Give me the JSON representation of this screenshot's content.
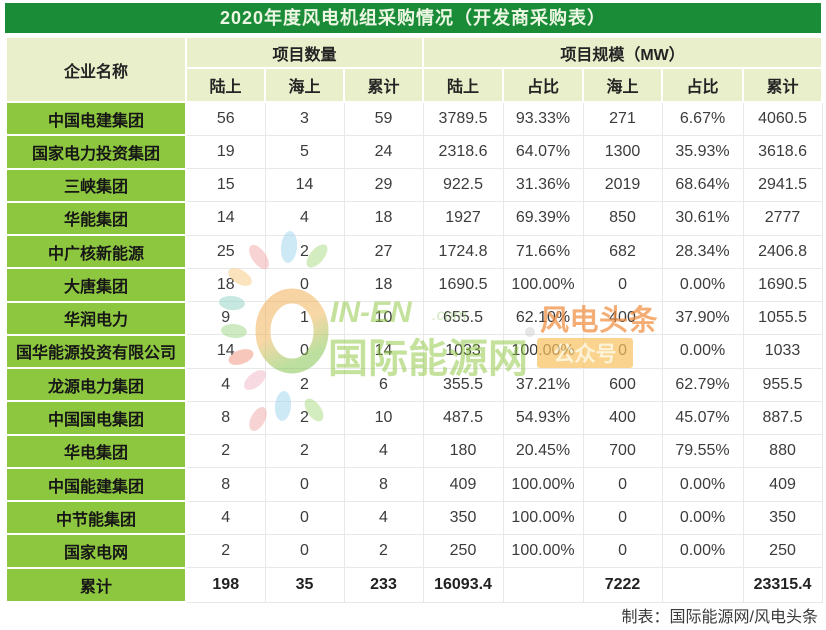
{
  "title": "2020年度风电机组采购情况（开发商采购表）",
  "chart_data": {
    "type": "table",
    "title": "2020年度风电机组采购情况（开发商采购表）",
    "corner_header": "企业名称",
    "group_headers": [
      {
        "label": "项目数量",
        "span": 3
      },
      {
        "label": "项目规模（MW）",
        "span": 5
      }
    ],
    "sub_headers": [
      "陆上",
      "海上",
      "累计",
      "陆上",
      "占比",
      "海上",
      "占比",
      "累计"
    ],
    "rows": [
      {
        "name": "中国电建集团",
        "cells": [
          "56",
          "3",
          "59",
          "3789.5",
          "93.33%",
          "271",
          "6.67%",
          "4060.5"
        ]
      },
      {
        "name": "国家电力投资集团",
        "cells": [
          "19",
          "5",
          "24",
          "2318.6",
          "64.07%",
          "1300",
          "35.93%",
          "3618.6"
        ]
      },
      {
        "name": "三峡集团",
        "cells": [
          "15",
          "14",
          "29",
          "922.5",
          "31.36%",
          "2019",
          "68.64%",
          "2941.5"
        ]
      },
      {
        "name": "华能集团",
        "cells": [
          "14",
          "4",
          "18",
          "1927",
          "69.39%",
          "850",
          "30.61%",
          "2777"
        ]
      },
      {
        "name": "中广核新能源",
        "cells": [
          "25",
          "2",
          "27",
          "1724.8",
          "71.66%",
          "682",
          "28.34%",
          "2406.8"
        ]
      },
      {
        "name": "大唐集团",
        "cells": [
          "18",
          "0",
          "18",
          "1690.5",
          "100.00%",
          "0",
          "0.00%",
          "1690.5"
        ]
      },
      {
        "name": "华润电力",
        "cells": [
          "9",
          "1",
          "10",
          "655.5",
          "62.10%",
          "400",
          "37.90%",
          "1055.5"
        ]
      },
      {
        "name": "国华能源投资有限公司",
        "cells": [
          "14",
          "0",
          "14",
          "1033",
          "100.00%",
          "0",
          "0.00%",
          "1033"
        ]
      },
      {
        "name": "龙源电力集团",
        "cells": [
          "4",
          "2",
          "6",
          "355.5",
          "37.21%",
          "600",
          "62.79%",
          "955.5"
        ]
      },
      {
        "name": "中国国电集团",
        "cells": [
          "8",
          "2",
          "10",
          "487.5",
          "54.93%",
          "400",
          "45.07%",
          "887.5"
        ]
      },
      {
        "name": "华电集团",
        "cells": [
          "2",
          "2",
          "4",
          "180",
          "20.45%",
          "700",
          "79.55%",
          "880"
        ]
      },
      {
        "name": "中国能建集团",
        "cells": [
          "8",
          "0",
          "8",
          "409",
          "100.00%",
          "0",
          "0.00%",
          "409"
        ]
      },
      {
        "name": "中节能集团",
        "cells": [
          "4",
          "0",
          "4",
          "350",
          "100.00%",
          "0",
          "0.00%",
          "350"
        ]
      },
      {
        "name": "国家电网",
        "cells": [
          "2",
          "0",
          "2",
          "250",
          "100.00%",
          "0",
          "0.00%",
          "250"
        ]
      }
    ],
    "total_row": {
      "name": "累计",
      "cells": [
        "198",
        "35",
        "233",
        "16093.4",
        "",
        "7222",
        "",
        "23315.4"
      ]
    }
  },
  "footer": {
    "credit": "制表：国际能源网/风电头条"
  },
  "watermark": {
    "logo_text": "IN-EN",
    "logo_tld": ".com",
    "site_name": "国际能源网",
    "brand_name": "风电头条",
    "badge_label": "公众号"
  },
  "colors": {
    "title_bar_green": "#1a8c38",
    "header_pale_green": "#e9efcb",
    "company_cell_green": "#8dc63f",
    "watermark_green": "#8cc63e",
    "watermark_orange": "#f08c3c",
    "badge_yellow": "#f8c35f"
  }
}
